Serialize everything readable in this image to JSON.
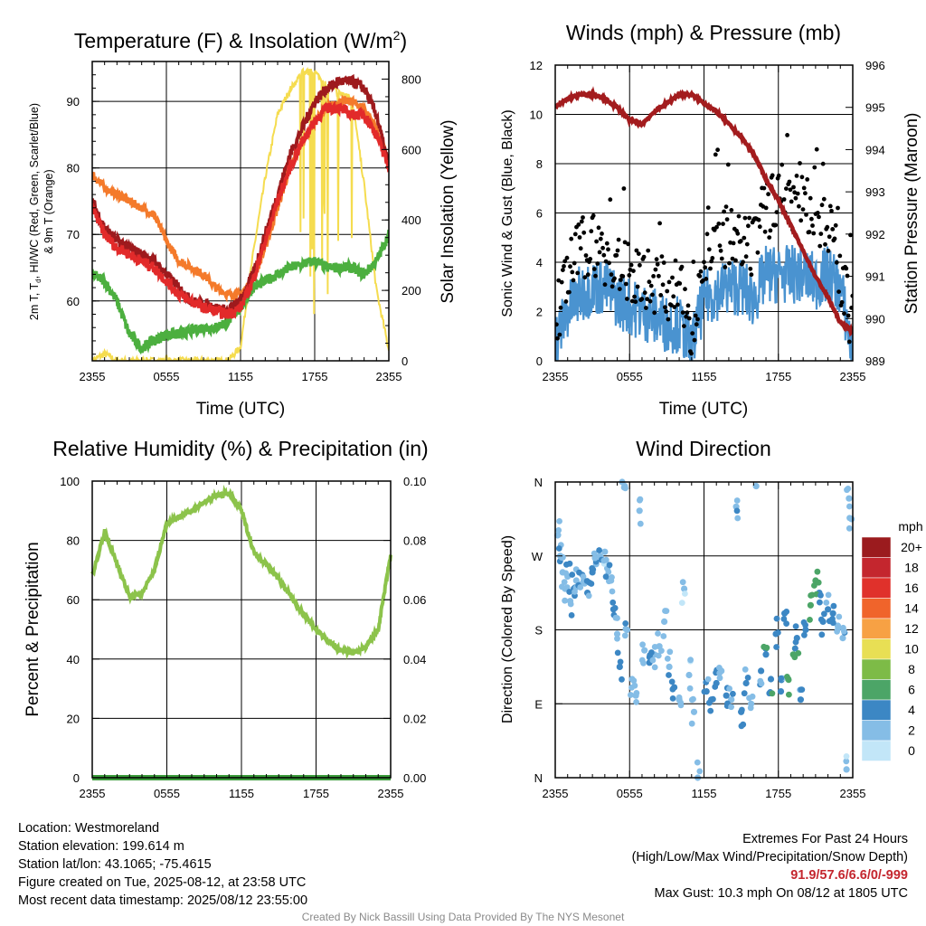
{
  "panels": {
    "temp": {
      "title": "Temperature (F) & Insolation (W/m",
      "title_sup": "2",
      "title_close": ")",
      "xlabel": "Time (UTC)",
      "ylabel_left_line1": "2m T, T",
      "ylabel_left_sub": "d",
      "ylabel_left_line1b": ", HI/WC (Red, Green, Scarlet/Blue)",
      "ylabel_left_line2": "& 9m T (Orange)",
      "ylabel_right": "Solar Insolation (Yellow)",
      "yticks_left": [
        "60",
        "70",
        "80",
        "90"
      ],
      "yticks_right": [
        "0",
        "200",
        "400",
        "600",
        "800"
      ]
    },
    "winds": {
      "title": "Winds (mph) & Pressure (mb)",
      "xlabel": "Time (UTC)",
      "ylabel_left": "Sonic Wind & Gust (Blue, Black)",
      "ylabel_right": "Station Pressure (Maroon)",
      "yticks_left": [
        "0",
        "2",
        "4",
        "6",
        "8",
        "10",
        "12"
      ],
      "yticks_right": [
        "989",
        "990",
        "991",
        "992",
        "993",
        "994",
        "995",
        "996"
      ]
    },
    "rh": {
      "title": "Relative Humidity (%) & Precipitation (in)",
      "ylabel_left": "Percent & Precipitation",
      "yticks_left": [
        "0",
        "20",
        "40",
        "60",
        "80",
        "100"
      ],
      "yticks_right": [
        "0.00",
        "0.02",
        "0.04",
        "0.06",
        "0.08",
        "0.10"
      ]
    },
    "wdir": {
      "title": "Wind Direction",
      "ylabel_left": "Direction (Colored By Speed)",
      "yticks_left": [
        "N",
        "E",
        "S",
        "W",
        "N"
      ],
      "colorbar_title": "mph",
      "colorbar_labels": [
        "20+",
        "18",
        "16",
        "14",
        "12",
        "10",
        "8",
        "6",
        "4",
        "2",
        "0"
      ],
      "colorbar_colors": [
        "#9b1b1e",
        "#c4262e",
        "#e0312b",
        "#f0642b",
        "#f7a144",
        "#e8df54",
        "#7dbb47",
        "#4ca567",
        "#3c87c4",
        "#85bde6",
        "#c2e6f8"
      ]
    }
  },
  "xticks": [
    "2355",
    "0555",
    "1155",
    "1755",
    "2355"
  ],
  "colors": {
    "red": "#c72026",
    "dark_red": "#9e1a1d",
    "scarlet": "#e22a2a",
    "green": "#4caf3f",
    "orange": "#f47a2b",
    "yellow": "#f5dc4f",
    "maroon": "#a31c1e",
    "wind_blue": "#4a93d0",
    "gust_black": "#000000",
    "rh_green": "#8cc34b",
    "precip_green": "#3c9c3c"
  },
  "info": {
    "location": "Location: Westmoreland",
    "elevation": "Station elevation: 199.614 m",
    "latlon": "Station lat/lon: 43.1065; -75.4615",
    "created": "Figure created on Tue, 2025-08-12, at 23:58 UTC",
    "recent": "Most recent data timestamp: 2025/08/12 23:55:00"
  },
  "extremes": {
    "line1": "Extremes For Past 24 Hours",
    "line2": "(High/Low/Max Wind/Precipitation/Snow Depth)",
    "values": "91.9/57.6/6.6/0/-999",
    "gust": "Max Gust: 10.3 mph On 08/12 at 1805 UTC"
  },
  "footer": "Created By Nick Bassill Using Data Provided By The NYS Mesonet",
  "chart_data": [
    {
      "type": "line",
      "title": "Temperature (F) & Insolation (W/m2)",
      "xlabel": "Time (UTC)",
      "x_hours": [
        0,
        1,
        2,
        3,
        4,
        5,
        6,
        7,
        8,
        9,
        10,
        11,
        12,
        13,
        14,
        15,
        16,
        17,
        18,
        19,
        20,
        21,
        22,
        23,
        24
      ],
      "ylim": [
        51,
        96
      ],
      "y2lim": [
        0,
        850
      ],
      "series": [
        {
          "name": "2m T",
          "values": [
            74,
            70,
            68,
            67,
            66,
            65,
            63,
            61,
            60,
            59,
            58.5,
            58,
            59,
            63,
            69,
            75,
            80,
            84,
            87,
            89,
            89,
            88,
            88,
            85,
            80
          ],
          "color": "red"
        },
        {
          "name": "HI/WC",
          "values": [
            75,
            71,
            69,
            68,
            67,
            66,
            64,
            62,
            60,
            59.5,
            59,
            58.5,
            60,
            64,
            70,
            76,
            82,
            86,
            90,
            92,
            93,
            93,
            92,
            88,
            80
          ],
          "color": "dark_red"
        },
        {
          "name": "9m T",
          "values": [
            79,
            77,
            76,
            75,
            74,
            73,
            69,
            66,
            65,
            64,
            62,
            61,
            61,
            63,
            68,
            74,
            80,
            84,
            87,
            89,
            90,
            90,
            89,
            86,
            81
          ],
          "color": "orange"
        },
        {
          "name": "Td",
          "values": [
            64,
            63,
            60,
            55,
            53,
            54,
            55,
            55,
            55.5,
            56,
            56,
            57,
            59,
            62,
            63,
            64,
            65,
            65.5,
            66,
            65,
            65,
            65,
            64,
            66,
            70
          ],
          "color": "green"
        },
        {
          "name": "Solar Insolation",
          "values": [
            0,
            20,
            0,
            0,
            0,
            0,
            0,
            0,
            0,
            0,
            0,
            0,
            40,
            300,
            520,
            700,
            770,
            820,
            820,
            780,
            760,
            750,
            500,
            200,
            30
          ],
          "axis": "right",
          "color": "yellow"
        }
      ]
    },
    {
      "type": "line",
      "title": "Winds (mph) & Pressure (mb)",
      "xlabel": "Time (UTC)",
      "x_hours": [
        0,
        1,
        2,
        3,
        4,
        5,
        6,
        7,
        8,
        9,
        10,
        11,
        12,
        13,
        14,
        15,
        16,
        17,
        18,
        19,
        20,
        21,
        22,
        23,
        24
      ],
      "ylim": [
        0,
        12
      ],
      "y2lim": [
        989,
        996
      ],
      "series": [
        {
          "name": "Sonic Wind",
          "values": [
            0.8,
            2,
            2.7,
            3,
            3,
            2.5,
            2.2,
            2,
            1.8,
            1.5,
            1.5,
            0.5,
            2.5,
            2.8,
            3,
            3,
            2.5,
            3.5,
            3.5,
            3.5,
            3.5,
            3.2,
            3.5,
            3,
            0.3
          ],
          "color": "wind_blue"
        },
        {
          "name": "Gust",
          "values": [
            1.5,
            3.5,
            4.5,
            4.8,
            4.2,
            3.8,
            3.5,
            3.5,
            3.2,
            3,
            2.8,
            1.5,
            4,
            4.8,
            5,
            4.5,
            4.5,
            6,
            7,
            6.5,
            6.8,
            6,
            5.5,
            3.5,
            1.5
          ],
          "color": "gust_black"
        },
        {
          "name": "Station Pressure",
          "values": [
            995.0,
            995.2,
            995.3,
            995.3,
            995.2,
            995.0,
            994.7,
            994.6,
            994.9,
            995.1,
            995.3,
            995.3,
            995.1,
            994.9,
            994.6,
            994.3,
            993.9,
            993.3,
            992.8,
            992.2,
            991.6,
            991.0,
            990.5,
            989.9,
            989.7
          ],
          "axis": "right",
          "color": "maroon"
        }
      ]
    },
    {
      "type": "line",
      "title": "Relative Humidity (%) & Precipitation (in)",
      "x_hours": [
        0,
        1,
        2,
        3,
        4,
        5,
        6,
        7,
        8,
        9,
        10,
        11,
        12,
        13,
        14,
        15,
        16,
        17,
        18,
        19,
        20,
        21,
        22,
        23,
        24
      ],
      "ylim": [
        0,
        100
      ],
      "y2lim": [
        0,
        0.1
      ],
      "series": [
        {
          "name": "Relative Humidity",
          "values": [
            68,
            83,
            72,
            61,
            62,
            70,
            86,
            88,
            90,
            93,
            95,
            96,
            90,
            76,
            72,
            67,
            61,
            55,
            50,
            46,
            43,
            42,
            44,
            50,
            75
          ],
          "color": "rh_green"
        },
        {
          "name": "Precipitation",
          "values": [
            0,
            0,
            0,
            0,
            0,
            0,
            0,
            0,
            0,
            0,
            0,
            0,
            0,
            0,
            0,
            0,
            0,
            0,
            0,
            0,
            0,
            0,
            0,
            0,
            0
          ],
          "axis": "right",
          "color": "precip_green"
        }
      ]
    },
    {
      "type": "scatter",
      "title": "Wind Direction",
      "x_hours_range": [
        0,
        24
      ],
      "ylim": [
        0,
        360
      ],
      "points": [
        [
          0.2,
          295,
          1
        ],
        [
          0.4,
          270,
          2
        ],
        [
          0.6,
          250,
          2
        ],
        [
          0.8,
          230,
          1
        ],
        [
          1.0,
          245,
          2
        ],
        [
          1.2,
          215,
          2
        ],
        [
          1.5,
          230,
          3
        ],
        [
          1.7,
          240,
          2
        ],
        [
          2.0,
          235,
          2
        ],
        [
          2.3,
          240,
          2
        ],
        [
          2.6,
          225,
          3
        ],
        [
          3.0,
          250,
          3
        ],
        [
          3.3,
          260,
          2
        ],
        [
          3.6,
          270,
          2
        ],
        [
          4.0,
          275,
          1
        ],
        [
          4.2,
          255,
          2
        ],
        [
          4.5,
          240,
          2
        ],
        [
          4.7,
          205,
          3
        ],
        [
          5.0,
          175,
          2
        ],
        [
          5.2,
          135,
          3
        ],
        [
          5.4,
          360,
          1
        ],
        [
          5.6,
          355,
          1
        ],
        [
          5.8,
          180,
          2
        ],
        [
          6.2,
          120,
          1
        ],
        [
          6.5,
          100,
          2
        ],
        [
          6.8,
          325,
          1
        ],
        [
          7.2,
          155,
          2
        ],
        [
          7.6,
          140,
          3
        ],
        [
          8.0,
          150,
          2
        ],
        [
          8.4,
          160,
          2
        ],
        [
          8.8,
          190,
          1
        ],
        [
          9.2,
          135,
          2
        ],
        [
          9.6,
          110,
          3
        ],
        [
          10.0,
          95,
          2
        ],
        [
          10.4,
          230,
          1
        ],
        [
          10.8,
          125,
          1
        ],
        [
          11.2,
          80,
          2
        ],
        [
          11.5,
          0,
          1
        ],
        [
          12.2,
          105,
          3
        ],
        [
          12.6,
          95,
          4
        ],
        [
          13.0,
          115,
          3
        ],
        [
          13.4,
          130,
          2
        ],
        [
          13.8,
          100,
          3
        ],
        [
          14.2,
          95,
          2
        ],
        [
          14.6,
          330,
          2
        ],
        [
          15.0,
          80,
          3
        ],
        [
          15.4,
          115,
          3
        ],
        [
          15.8,
          90,
          2
        ],
        [
          16.2,
          355,
          1
        ],
        [
          16.6,
          130,
          3
        ],
        [
          17.0,
          150,
          4
        ],
        [
          17.4,
          120,
          4
        ],
        [
          17.8,
          175,
          4
        ],
        [
          18.2,
          105,
          3
        ],
        [
          18.5,
          200,
          4
        ],
        [
          18.8,
          120,
          6
        ],
        [
          19.2,
          150,
          5
        ],
        [
          19.5,
          170,
          4
        ],
        [
          19.8,
          95,
          3
        ],
        [
          20.2,
          180,
          4
        ],
        [
          20.6,
          210,
          5
        ],
        [
          21.0,
          240,
          6
        ],
        [
          21.3,
          225,
          4
        ],
        [
          21.6,
          190,
          4
        ],
        [
          22.0,
          205,
          3
        ],
        [
          22.4,
          200,
          4
        ],
        [
          22.8,
          185,
          2
        ],
        [
          23.2,
          170,
          2
        ],
        [
          23.5,
          10,
          1
        ],
        [
          23.7,
          340,
          1
        ],
        [
          23.9,
          315,
          2
        ]
      ]
    }
  ]
}
